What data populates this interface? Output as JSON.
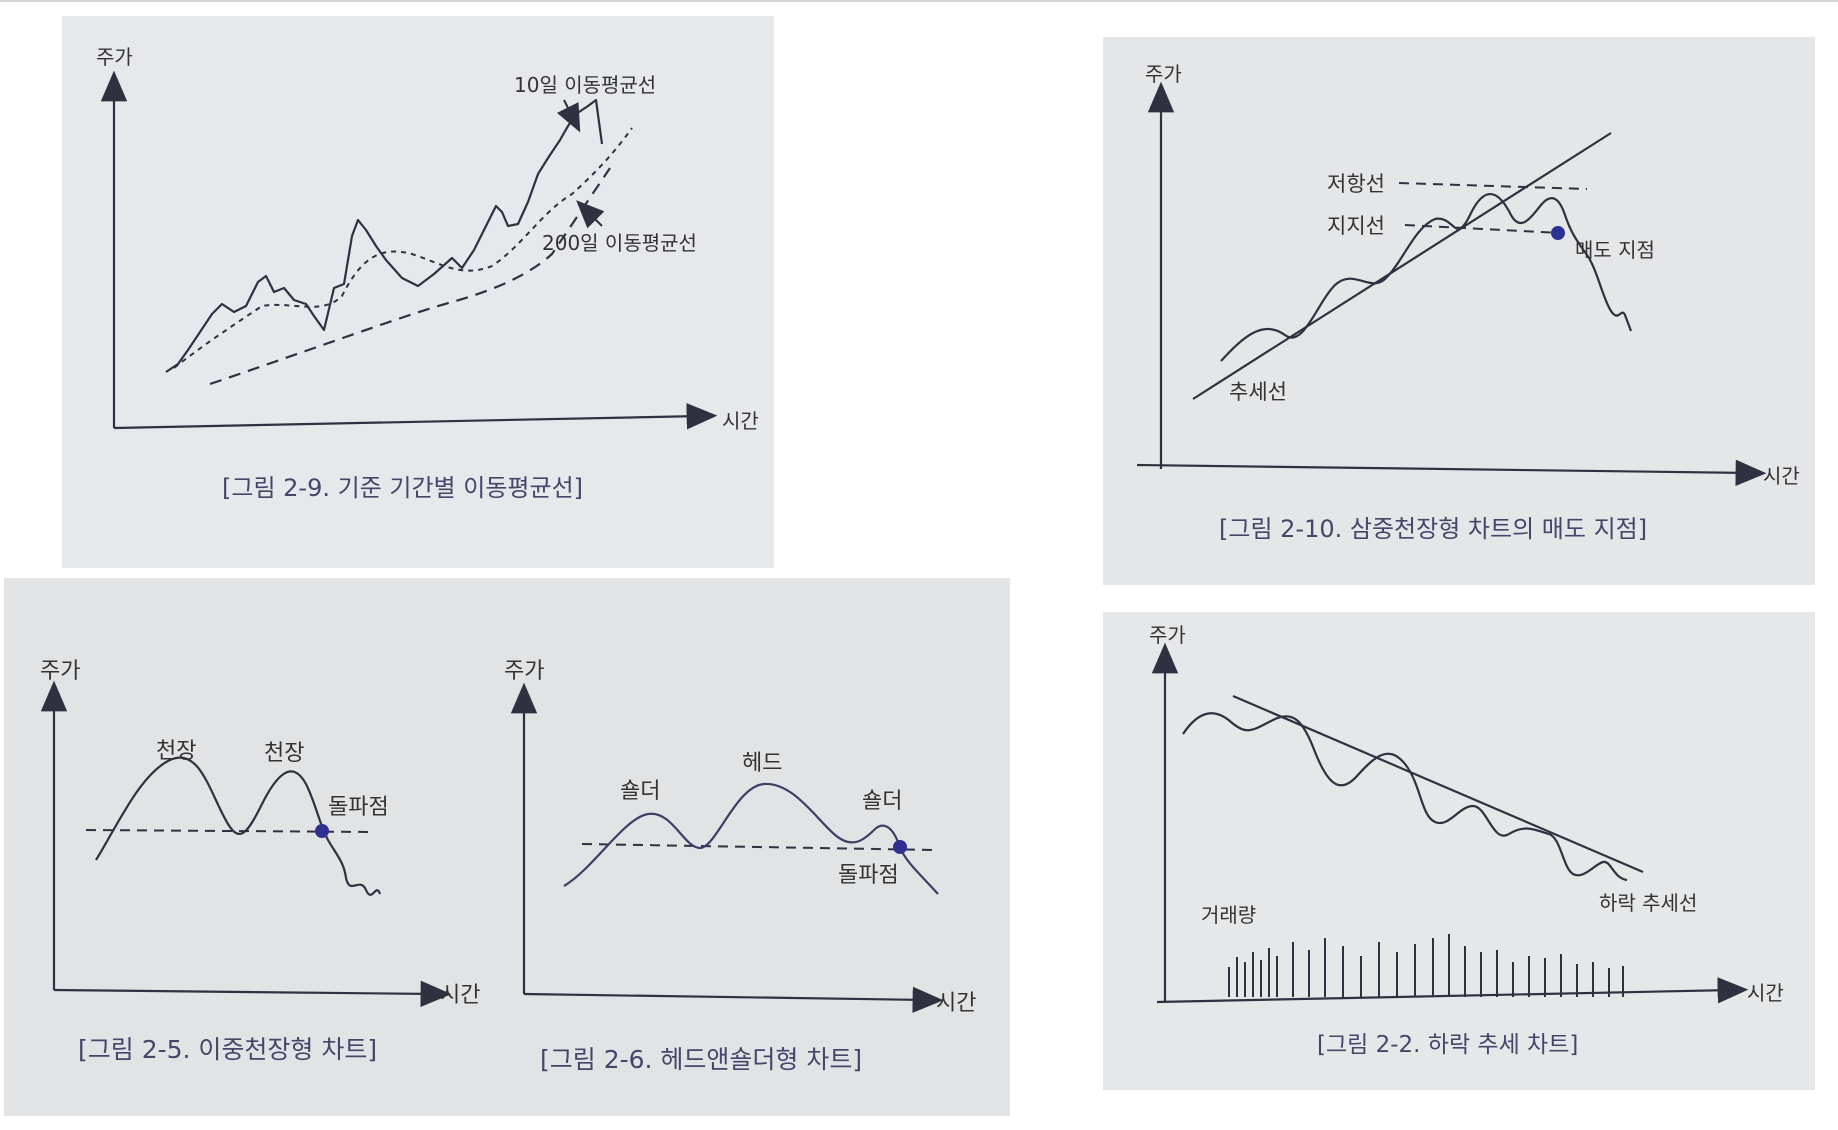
{
  "figures": {
    "fig_2_9": {
      "caption": "[그림 2-9. 기준 기간별 이동평균선]",
      "y_axis": "주가",
      "x_axis": "시간",
      "label_ma10": "10일 이동평균선",
      "label_ma200": "200일 이동평균선"
    },
    "fig_2_10": {
      "caption": "[그림 2-10. 삼중천장형 차트의 매도 지점]",
      "y_axis": "주가",
      "x_axis": "시간",
      "label_resistance": "저항선",
      "label_support": "지지선",
      "label_sell_point": "매도 지점",
      "label_trend": "추세선"
    },
    "fig_2_5": {
      "caption": "[그림 2-5. 이중천장형 차트]",
      "y_axis": "주가",
      "x_axis": "시간",
      "label_top1": "천장",
      "label_top2": "천장",
      "label_break": "돌파점"
    },
    "fig_2_6": {
      "caption": "[그림 2-6. 헤드앤숄더형 차트]",
      "y_axis": "주가",
      "x_axis": "시간",
      "label_left_shoulder": "숄더",
      "label_head": "헤드",
      "label_right_shoulder": "숄더",
      "label_break": "돌파점"
    },
    "fig_2_2": {
      "caption": "[그림 2-2. 하락 추세 차트]",
      "y_axis": "주가",
      "x_axis": "시간",
      "label_volume": "거래량",
      "label_downtrend": "하락 추세선"
    }
  },
  "colors": {
    "paper": "#e7e9ec",
    "line": "#2f3140",
    "caption": "#45466a",
    "marker": "#2e3192"
  }
}
